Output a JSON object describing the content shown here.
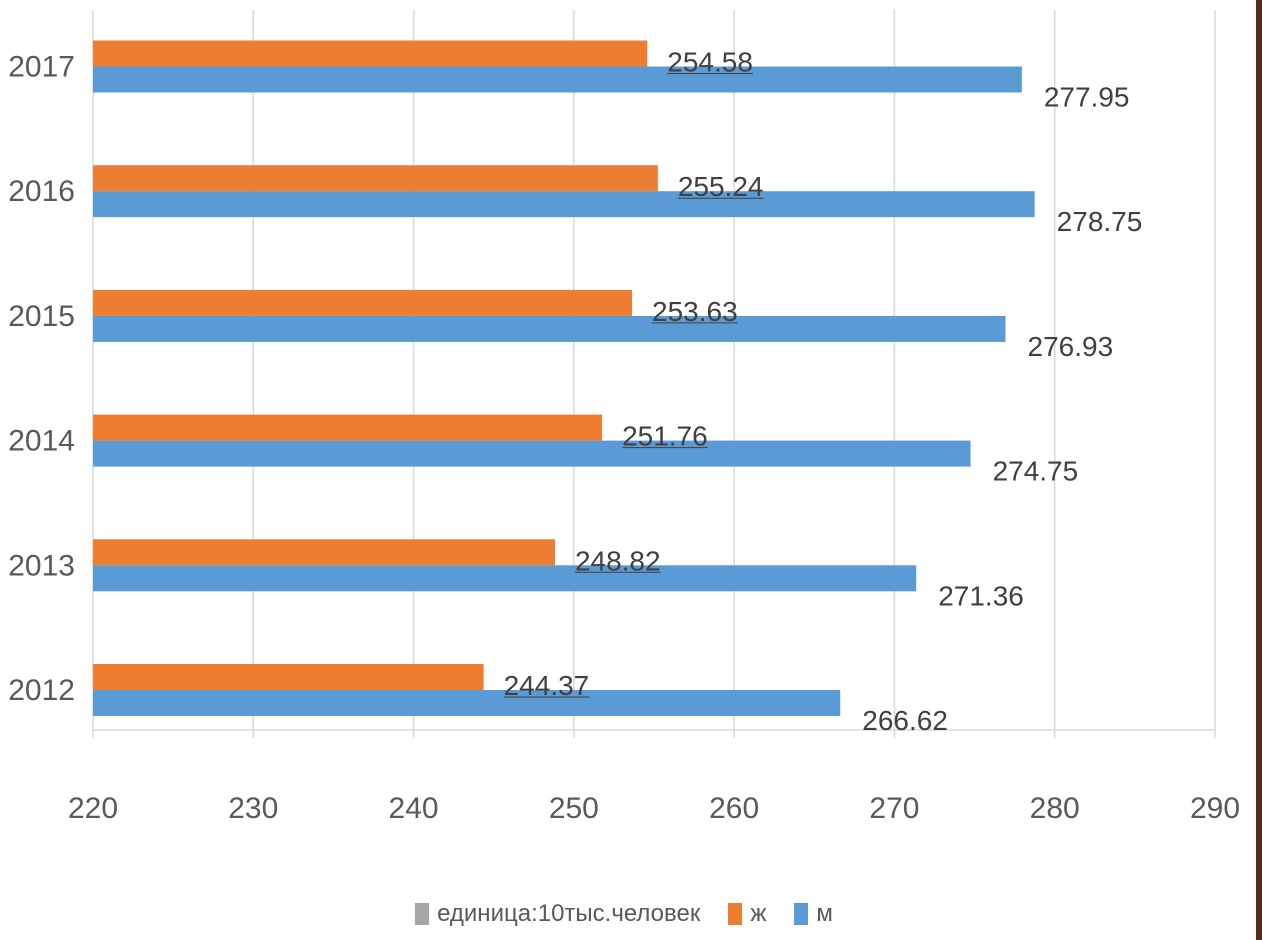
{
  "chart_data": {
    "type": "bar",
    "orientation": "horizontal",
    "categories": [
      "2012",
      "2013",
      "2014",
      "2015",
      "2016",
      "2017"
    ],
    "series": [
      {
        "name": "ж",
        "color": "#ED7D31",
        "values": [
          244.37,
          248.82,
          251.76,
          253.63,
          255.24,
          254.58
        ]
      },
      {
        "name": "м",
        "color": "#5B9BD5",
        "values": [
          266.62,
          271.36,
          274.75,
          276.93,
          278.75,
          277.95
        ]
      }
    ],
    "xlim": [
      220,
      290
    ],
    "xticks": [
      220,
      230,
      240,
      250,
      260,
      270,
      280,
      290
    ],
    "grid": true,
    "legend_position": "bottom",
    "legend": [
      {
        "label": "единица:10тыс.человек",
        "color": "#A5A5A5"
      },
      {
        "label": "ж",
        "color": "#ED7D31"
      },
      {
        "label": "м",
        "color": "#5B9BD5"
      }
    ]
  }
}
